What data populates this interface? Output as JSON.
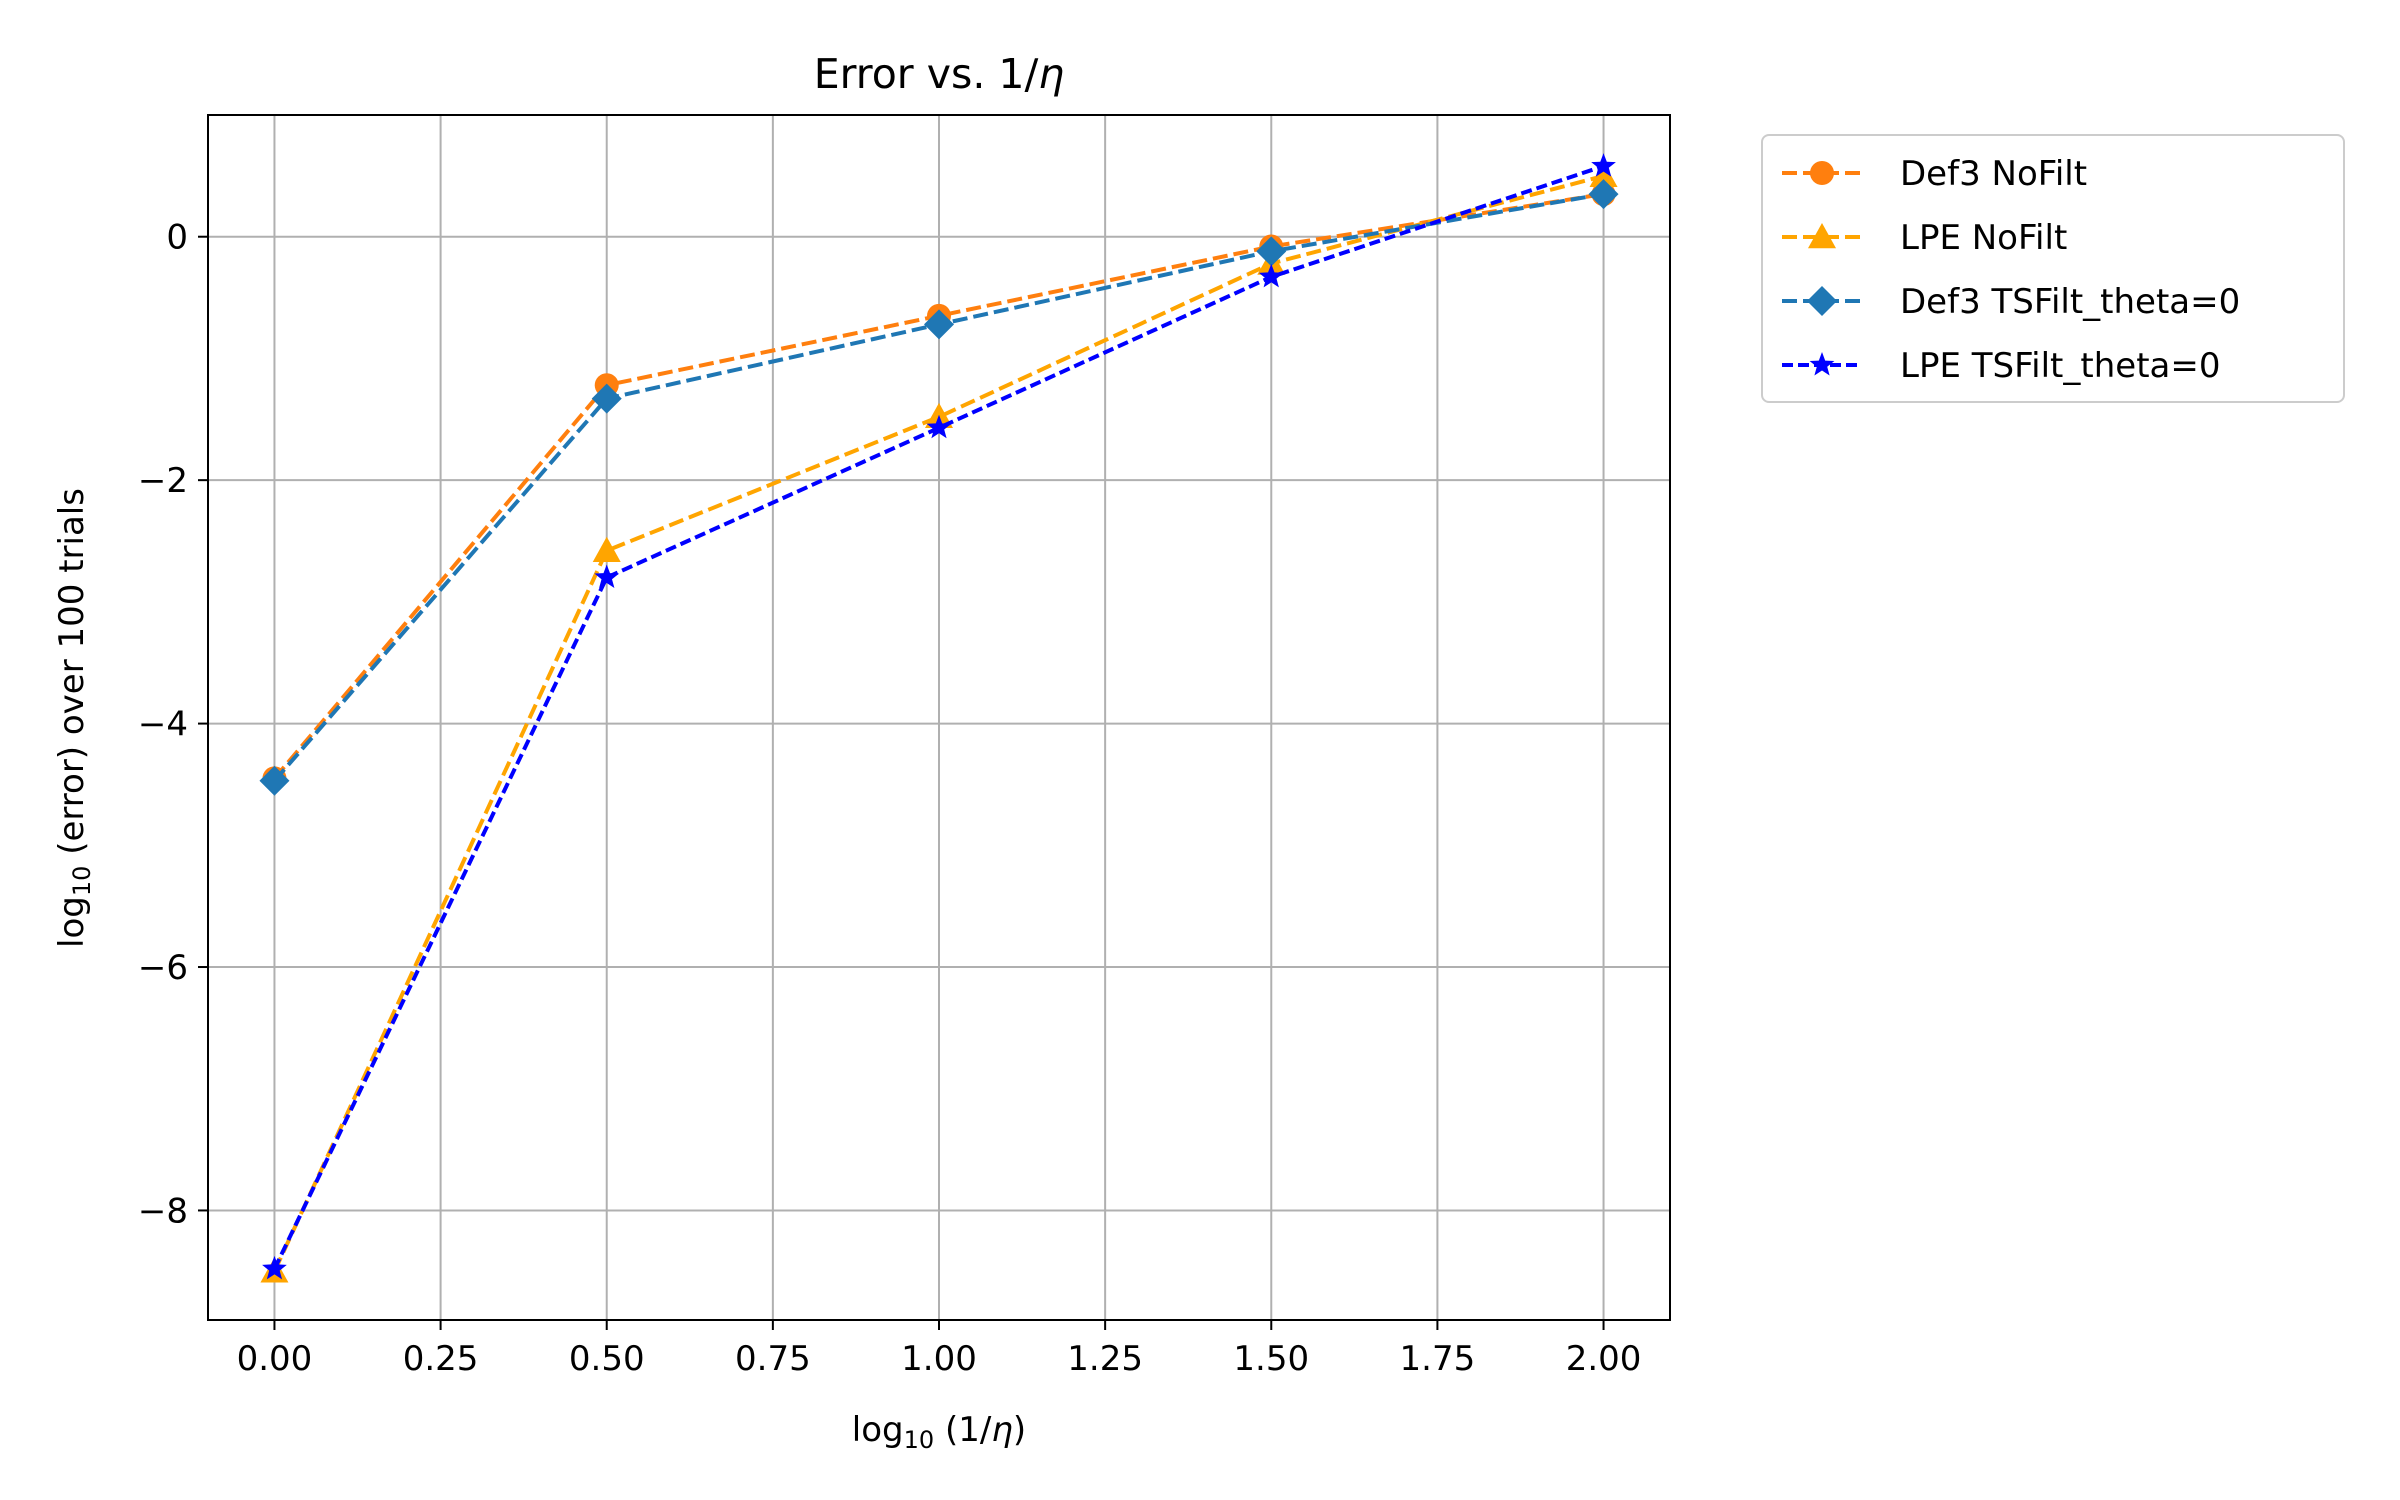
{
  "chart_data": {
    "type": "line",
    "title": "Error vs. 1/η",
    "title_parts": {
      "main": "Error vs. 1/",
      "symbol": "η"
    },
    "xlabel": "log10 (1/η)",
    "xlabel_parts": {
      "pre": "log",
      "sub": "10",
      "mid": " (1/",
      "symbol": "η",
      "post": ")"
    },
    "ylabel": "log10 (error) over 100 trials",
    "ylabel_parts": {
      "pre": "log",
      "sub": "10",
      "post": " (error) over 100 trials"
    },
    "xlim": [
      -0.1,
      2.1
    ],
    "ylim": [
      -8.9,
      1.0
    ],
    "xticks": [
      0.0,
      0.25,
      0.5,
      0.75,
      1.0,
      1.25,
      1.5,
      1.75,
      2.0
    ],
    "xtick_labels": [
      "0.00",
      "0.25",
      "0.50",
      "0.75",
      "1.00",
      "1.25",
      "1.50",
      "1.75",
      "2.00"
    ],
    "yticks": [
      0,
      -2,
      -4,
      -6,
      -8
    ],
    "ytick_labels": [
      "0",
      "−2",
      "−4",
      "−6",
      "−8"
    ],
    "grid": true,
    "legend_position": "outside-right-top",
    "x": [
      0.0,
      0.5,
      1.0,
      1.5,
      2.0
    ],
    "series": [
      {
        "name": "Def3 NoFilt",
        "color": "#ff7f0e",
        "marker": "circle",
        "linestyle": "dashed",
        "values": [
          -4.45,
          -1.22,
          -0.65,
          -0.08,
          0.35
        ]
      },
      {
        "name": "LPE NoFilt",
        "color": "#ffa500",
        "marker": "triangle",
        "linestyle": "dashed",
        "values": [
          -8.5,
          -2.58,
          -1.48,
          -0.22,
          0.5
        ]
      },
      {
        "name": "Def3 TSFilt_theta=0",
        "color": "#1f77b4",
        "marker": "diamond",
        "linestyle": "dashed",
        "values": [
          -4.47,
          -1.33,
          -0.72,
          -0.12,
          0.35
        ]
      },
      {
        "name": "LPE TSFilt_theta=0",
        "color": "#0000ff",
        "marker": "star",
        "linestyle": "dashed",
        "values": [
          -8.48,
          -2.8,
          -1.57,
          -0.33,
          0.58
        ]
      }
    ]
  }
}
